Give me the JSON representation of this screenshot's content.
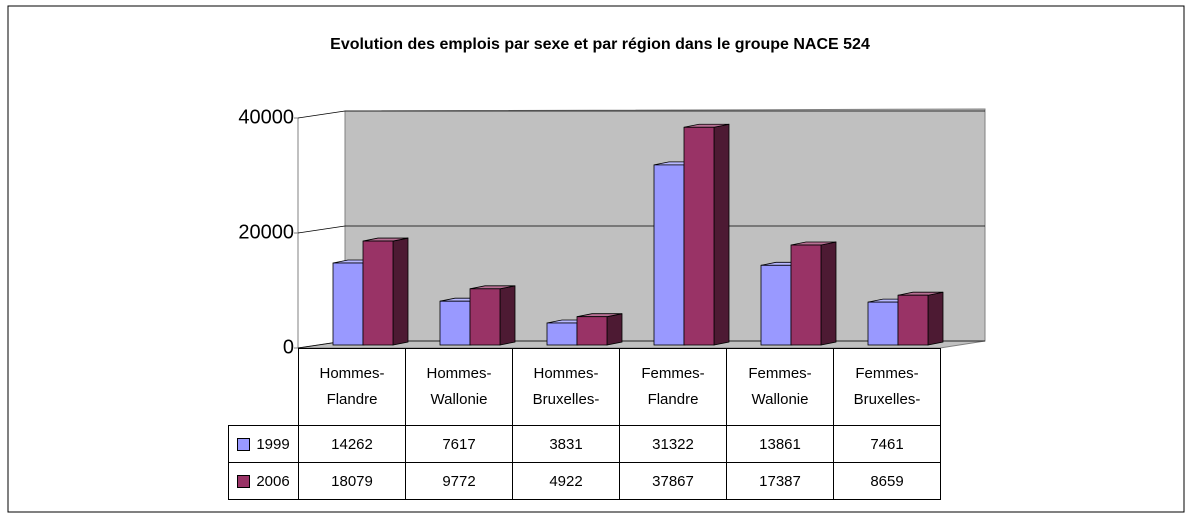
{
  "chart_data": {
    "type": "bar3d",
    "title": "Evolution des emplois par sexe et par région dans le groupe NACE 524",
    "categories": [
      "Hommes-Flandre",
      "Hommes-Wallonie",
      "Hommes-Bruxelles-",
      "Femmes-Flandre",
      "Femmes-Wallonie",
      "Femmes-Bruxelles-"
    ],
    "series": [
      {
        "name": "1999",
        "color": "#9999ff",
        "values": [
          14262,
          7617,
          3831,
          31322,
          13861,
          7461
        ]
      },
      {
        "name": "2006",
        "color": "#993366",
        "values": [
          18079,
          9772,
          4922,
          37867,
          17387,
          8659
        ]
      }
    ],
    "ylim": [
      0,
      40000
    ],
    "yticks": [
      0,
      20000,
      40000
    ],
    "grid": true
  }
}
